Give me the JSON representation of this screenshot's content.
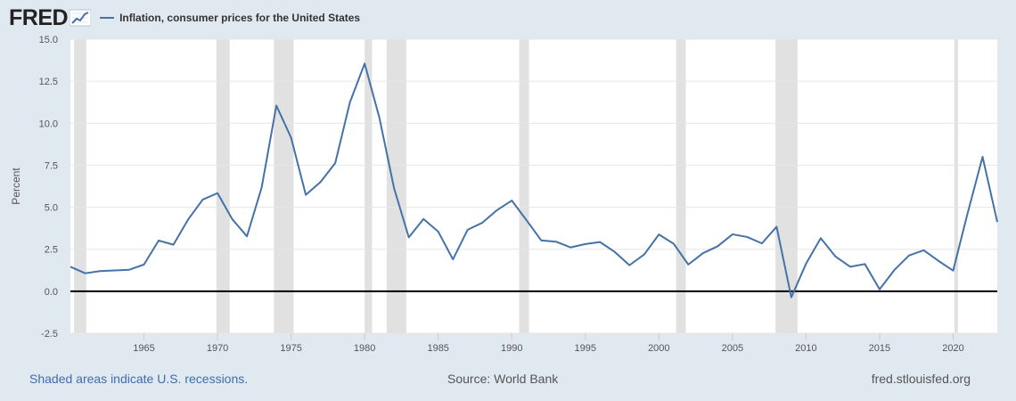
{
  "header": {
    "logo_text": "FRED",
    "logo_icon": "trend-graph-icon"
  },
  "legend": {
    "label": "Inflation, consumer prices for the United States",
    "color": "#4572a7"
  },
  "footer": {
    "recession_note": "Shaded areas indicate U.S. recessions.",
    "source": "Source: World Bank",
    "site": "fred.stlouisfed.org"
  },
  "chart_data": {
    "type": "line",
    "ylabel": "Percent",
    "ylim": [
      -2.5,
      15.0
    ],
    "xlim": [
      1960,
      2023
    ],
    "y_ticks": [
      15.0,
      12.5,
      10.0,
      7.5,
      5.0,
      2.5,
      0.0,
      -2.5
    ],
    "y_tick_labels": [
      "15.0",
      "12.5",
      "10.0",
      "7.5",
      "5.0",
      "2.5",
      "0.0",
      "-2.5"
    ],
    "x_ticks": [
      1965,
      1970,
      1975,
      1980,
      1985,
      1990,
      1995,
      2000,
      2005,
      2010,
      2015,
      2020
    ],
    "grid": true,
    "line_color": "#4572a7",
    "recession_color": "#e1e1e1",
    "recessions": [
      [
        1960.25,
        1961.08
      ],
      [
        1969.92,
        1970.83
      ],
      [
        1973.83,
        1975.17
      ],
      [
        1980.0,
        1980.5
      ],
      [
        1981.5,
        1982.83
      ],
      [
        1990.5,
        1991.17
      ],
      [
        2001.17,
        2001.83
      ],
      [
        2007.92,
        2009.42
      ],
      [
        2020.08,
        2020.33
      ]
    ],
    "series": [
      {
        "x": [
          1960,
          1961,
          1962,
          1963,
          1964,
          1965,
          1966,
          1967,
          1968,
          1969,
          1970,
          1971,
          1972,
          1973,
          1974,
          1975,
          1976,
          1977,
          1978,
          1979,
          1980,
          1981,
          1982,
          1983,
          1984,
          1985,
          1986,
          1987,
          1988,
          1989,
          1990,
          1991,
          1992,
          1993,
          1994,
          1995,
          1996,
          1997,
          1998,
          1999,
          2000,
          2001,
          2002,
          2003,
          2004,
          2005,
          2006,
          2007,
          2008,
          2009,
          2010,
          2011,
          2012,
          2013,
          2014,
          2015,
          2016,
          2017,
          2018,
          2019,
          2020,
          2021,
          2022,
          2023
        ],
        "values": [
          1.46,
          1.07,
          1.2,
          1.24,
          1.28,
          1.59,
          3.02,
          2.77,
          4.27,
          5.46,
          5.84,
          4.29,
          3.27,
          6.18,
          11.05,
          9.14,
          5.74,
          6.5,
          7.63,
          11.25,
          13.55,
          10.33,
          6.13,
          3.21,
          4.3,
          3.55,
          1.9,
          3.66,
          4.08,
          4.83,
          5.4,
          4.23,
          3.03,
          2.95,
          2.61,
          2.81,
          2.93,
          2.34,
          1.55,
          2.19,
          3.38,
          2.83,
          1.59,
          2.27,
          2.68,
          3.39,
          3.23,
          2.85,
          3.84,
          -0.36,
          1.64,
          3.16,
          2.07,
          1.46,
          1.62,
          0.12,
          1.26,
          2.13,
          2.44,
          1.81,
          1.23,
          4.7,
          8.0,
          4.12
        ]
      }
    ]
  }
}
